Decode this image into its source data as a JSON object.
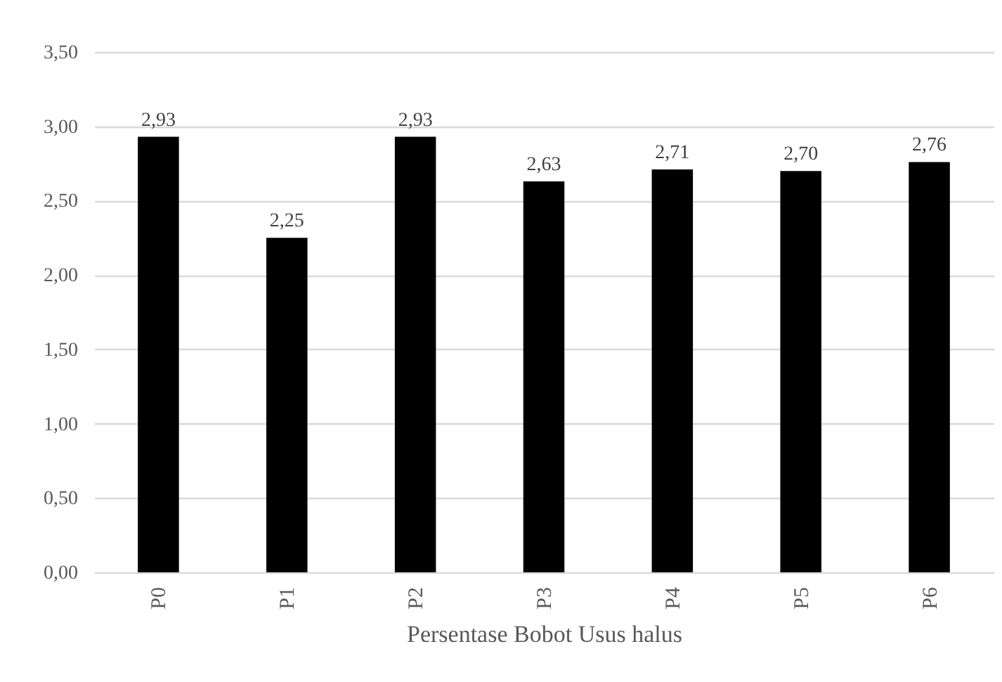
{
  "chart_data": {
    "type": "bar",
    "xlabel": "Persentase Bobot Usus halus",
    "categories": [
      "P0",
      "P1",
      "P2",
      "P3",
      "P4",
      "P5",
      "P6"
    ],
    "values": [
      2.93,
      2.25,
      2.93,
      2.63,
      2.71,
      2.7,
      2.76
    ],
    "value_labels": [
      "2,93",
      "2,25",
      "2,93",
      "2,63",
      "2,71",
      "2,70",
      "2,76"
    ],
    "color": "#000000",
    "ylim": [
      0,
      3.5
    ],
    "yticks": [
      {
        "value": 0,
        "label": "0,00"
      },
      {
        "value": 0.5,
        "label": "0,50"
      },
      {
        "value": 1,
        "label": "1,00"
      },
      {
        "value": 1.5,
        "label": "1,50"
      },
      {
        "value": 2,
        "label": "2,00"
      },
      {
        "value": 2.5,
        "label": "2,50"
      },
      {
        "value": 3,
        "label": "3,00"
      },
      {
        "value": 3.5,
        "label": "3,50"
      }
    ],
    "grid": "y"
  }
}
